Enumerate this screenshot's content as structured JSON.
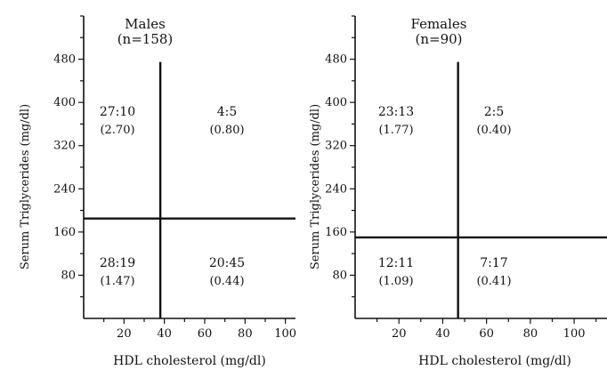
{
  "chart_data": [
    {
      "type": "scatter",
      "title": "Males",
      "subtitle": "(n=158)",
      "xlabel": "HDL cholesterol (mg/dl)",
      "ylabel": "Serum Triglycerides (mg/dl)",
      "xlim": [
        0,
        105
      ],
      "ylim": [
        0,
        560
      ],
      "xticks": [
        20,
        40,
        60,
        80,
        100
      ],
      "yticks": [
        80,
        160,
        240,
        320,
        400,
        480
      ],
      "cutoffs": {
        "x": 38,
        "y": 185
      },
      "quadrants": [
        {
          "position": "upper-left",
          "ratio": "27:10",
          "value": "(2.70)"
        },
        {
          "position": "upper-right",
          "ratio": "4:5",
          "value": "(0.80)"
        },
        {
          "position": "lower-left",
          "ratio": "28:19",
          "value": "(1.47)"
        },
        {
          "position": "lower-right",
          "ratio": "20:45",
          "value": "(0.44)"
        }
      ]
    },
    {
      "type": "scatter",
      "title": "Females",
      "subtitle": "(n=90)",
      "xlabel": "HDL cholesterol (mg/dl)",
      "ylabel": "Serum Triglycerides (mg/dl)",
      "xlim": [
        0,
        115
      ],
      "ylim": [
        0,
        560
      ],
      "xticks": [
        20,
        40,
        60,
        80,
        100
      ],
      "yticks": [
        80,
        160,
        240,
        320,
        400,
        480
      ],
      "cutoffs": {
        "x": 47,
        "y": 150
      },
      "quadrants": [
        {
          "position": "upper-left",
          "ratio": "23:13",
          "value": "(1.77)"
        },
        {
          "position": "upper-right",
          "ratio": "2:5",
          "value": "(0.40)"
        },
        {
          "position": "lower-left",
          "ratio": "12:11",
          "value": "(1.09)"
        },
        {
          "position": "lower-right",
          "ratio": "7:17",
          "value": "(0.41)"
        }
      ]
    }
  ]
}
